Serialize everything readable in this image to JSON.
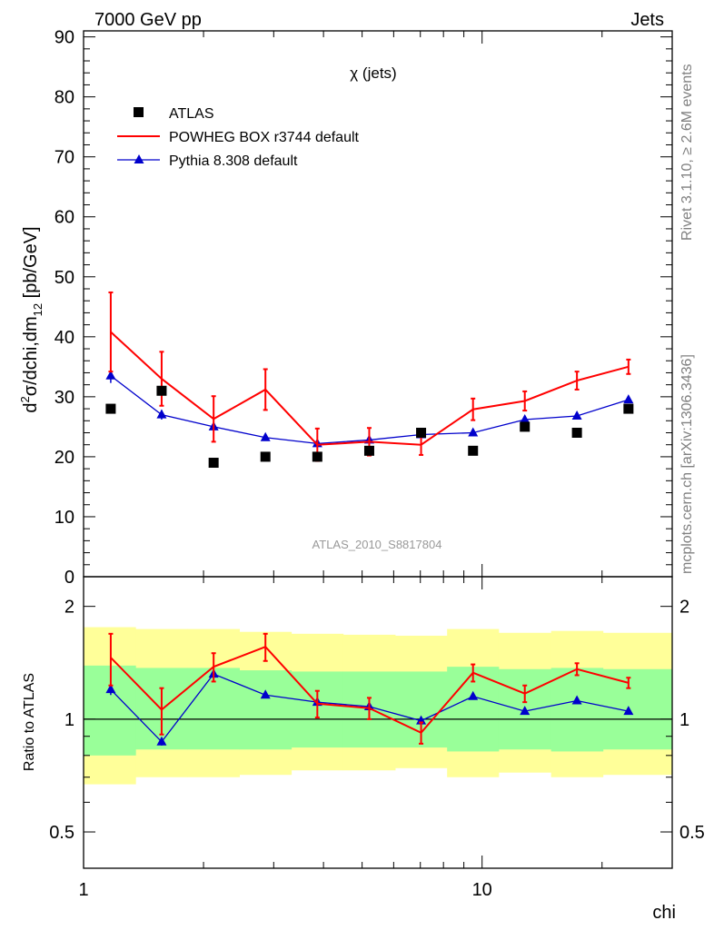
{
  "header": {
    "left": "7000 GeV pp",
    "right": "Jets"
  },
  "side_labels": {
    "rivet": "Rivet 3.1.10, ≥ 2.6M events",
    "mcplots": "mcplots.cern.ch [arXiv:1306.3436]"
  },
  "analysis_id": "ATLAS_2010_S8817804",
  "colors": {
    "data": "#000000",
    "powheg": "#ff0000",
    "pythia": "#0000cc",
    "band_outer": "#ffff99",
    "band_inner": "#99ff99"
  },
  "chart_data": [
    {
      "type": "line",
      "title": "χ (jets)",
      "ylabel_parts": {
        "d1": "d",
        "sup2": "2",
        "sigma": "σ/dchi,dm",
        "sub12": "12",
        "unit": " [pb/GeV]"
      },
      "xscale": "log",
      "xlim": [
        1,
        30
      ],
      "ylim": [
        0,
        91
      ],
      "yticks": [
        10,
        20,
        30,
        40,
        50,
        60,
        70,
        80,
        90
      ],
      "ytick_labels": [
        "10",
        "20",
        "30",
        "40",
        "50",
        "60",
        "70",
        "80",
        "90"
      ],
      "y_zero_label": "0",
      "legend_position": "top-left",
      "x": [
        1.17,
        1.57,
        2.12,
        2.86,
        3.86,
        5.21,
        7.03,
        9.49,
        12.8,
        17.3,
        23.3
      ],
      "series": [
        {
          "name": "ATLAS",
          "style": "markers",
          "marker": "square",
          "values": [
            28,
            31,
            19,
            20,
            20,
            21,
            24,
            21,
            25,
            24,
            28
          ]
        },
        {
          "name": "POWHEG BOX r3744 default",
          "style": "line",
          "values": [
            40.8,
            33.0,
            26.3,
            31.2,
            22.0,
            22.5,
            22.0,
            27.9,
            29.3,
            32.7,
            35.0
          ],
          "errors": [
            6.6,
            4.5,
            3.8,
            3.4,
            2.7,
            2.3,
            1.7,
            1.8,
            1.6,
            1.5,
            1.2
          ]
        },
        {
          "name": "Pythia 8.308 default",
          "style": "line",
          "marker": "triangle",
          "values": [
            33.5,
            27.0,
            25.0,
            23.2,
            22.2,
            22.8,
            23.7,
            24.0,
            26.2,
            26.8,
            29.5
          ],
          "errors": [
            1.2,
            0.8,
            0.6,
            0.5,
            0.4,
            0.4,
            0.3,
            0.3,
            0.3,
            0.3,
            0.3
          ]
        }
      ]
    },
    {
      "type": "line",
      "ylabel": "Ratio to ATLAS",
      "xlabel": "chi",
      "xscale": "log",
      "yscale": "log",
      "xlim": [
        1,
        30
      ],
      "ylim": [
        0.4,
        2.4
      ],
      "yticks": [
        0.5,
        1,
        2
      ],
      "ytick_labels": [
        "0.5",
        "1",
        "2"
      ],
      "xtick_labels": [
        "1",
        "10"
      ],
      "reference_line": 1,
      "bin_edges": [
        1.0,
        1.35,
        1.82,
        2.46,
        3.32,
        4.48,
        6.05,
        8.17,
        11.0,
        14.9,
        20.1,
        30.0
      ],
      "band_outer": {
        "lo": [
          0.67,
          0.7,
          0.7,
          0.71,
          0.73,
          0.73,
          0.74,
          0.7,
          0.72,
          0.7,
          0.71
        ],
        "hi": [
          1.76,
          1.74,
          1.74,
          1.71,
          1.69,
          1.68,
          1.67,
          1.74,
          1.7,
          1.72,
          1.7
        ]
      },
      "band_inner": {
        "lo": [
          0.8,
          0.83,
          0.83,
          0.83,
          0.84,
          0.84,
          0.84,
          0.82,
          0.83,
          0.82,
          0.83
        ],
        "hi": [
          1.39,
          1.37,
          1.37,
          1.35,
          1.34,
          1.34,
          1.34,
          1.38,
          1.36,
          1.37,
          1.36
        ]
      },
      "series": [
        {
          "name": "POWHEG BOX r3744 default",
          "values": [
            1.46,
            1.06,
            1.38,
            1.56,
            1.1,
            1.07,
            0.92,
            1.33,
            1.17,
            1.36,
            1.25
          ],
          "errors": [
            0.23,
            0.15,
            0.12,
            0.13,
            0.09,
            0.07,
            0.06,
            0.07,
            0.06,
            0.05,
            0.04
          ]
        },
        {
          "name": "Pythia 8.308 default",
          "values": [
            1.2,
            0.87,
            1.32,
            1.16,
            1.11,
            1.08,
            0.99,
            1.15,
            1.05,
            1.12,
            1.05
          ],
          "errors": [
            0.04,
            0.02,
            0.02,
            0.01,
            0.01,
            0.01,
            0.01,
            0.01,
            0.01,
            0.01,
            0.01
          ]
        }
      ]
    }
  ]
}
